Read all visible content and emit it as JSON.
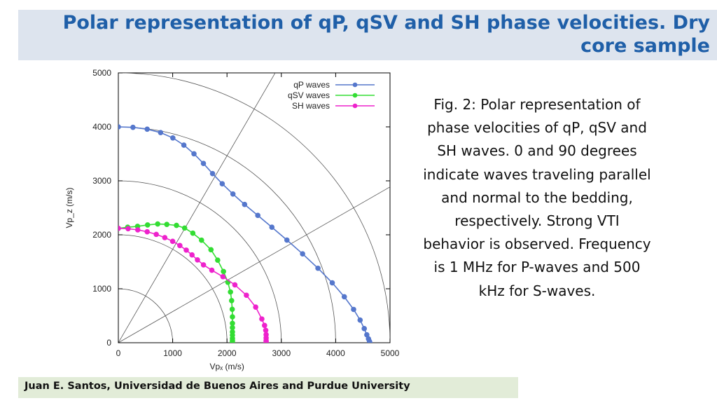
{
  "slide": {
    "title": "Polar representation of qP, qSV and SH phase velocities. Dry core sample",
    "caption": "Fig. 2: Polar representation of phase velocities of qP, qSV and SH waves. 0 and 90 degrees indicate waves traveling parallel and normal to the bedding, respectively. Strong VTI behavior is observed. Frequency is 1 MHz for P-waves and 500 kHz for S-waves.",
    "footer": "Juan E. Santos, Universidad de Buenos Aires and Purdue University"
  },
  "chart_data": {
    "type": "scatter",
    "xlabel": "Vpₓ (m/s)",
    "ylabel": "Vp_z (m/s)",
    "xlim": [
      0,
      5000
    ],
    "ylim": [
      0,
      5000
    ],
    "xticks": [
      "0",
      "1000",
      "2000",
      "3000",
      "4000",
      "5000"
    ],
    "yticks": [
      "0",
      "1000",
      "2000",
      "3000",
      "4000",
      "5000"
    ],
    "legend_position": "top-right",
    "series": [
      {
        "name": "qP waves",
        "color": "#5577cc",
        "x": [
          0,
          269,
          531,
          778,
          1003,
          1206,
          1392,
          1566,
          1734,
          1912,
          2109,
          2324,
          2567,
          2826,
          3103,
          3391,
          3674,
          3937,
          4159,
          4330,
          4450,
          4526,
          4573,
          4604,
          4622,
          4630
        ],
        "y": [
          4000,
          3991,
          3957,
          3894,
          3795,
          3662,
          3501,
          3322,
          3134,
          2945,
          2756,
          2562,
          2359,
          2140,
          1902,
          1647,
          1380,
          1110,
          851,
          617,
          419,
          262,
          147,
          72,
          25,
          0
        ]
      },
      {
        "name": "qSV waves",
        "color": "#33dd33",
        "x": [
          0,
          172,
          354,
          538,
          724,
          892,
          1070,
          1220,
          1371,
          1531,
          1705,
          1828,
          1935,
          2016,
          2064,
          2085,
          2096,
          2100,
          2100,
          2100,
          2100,
          2100,
          2100,
          2100,
          2100,
          2100
        ],
        "y": [
          2120,
          2140,
          2157,
          2183,
          2201,
          2193,
          2174,
          2125,
          2030,
          1900,
          1723,
          1530,
          1320,
          1120,
          940,
          780,
          620,
          480,
          360,
          280,
          200,
          140,
          80,
          40,
          15,
          0
        ]
      },
      {
        "name": "SH waves",
        "color": "#ee22cc",
        "x": [
          0,
          180,
          358,
          531,
          698,
          855,
          1000,
          1132,
          1250,
          1356,
          1456,
          1567,
          1721,
          1925,
          2145,
          2357,
          2528,
          2641,
          2691,
          2713,
          2720,
          2720,
          2720,
          2720,
          2720,
          2720
        ],
        "y": [
          2120,
          2113,
          2091,
          2056,
          2008,
          1948,
          1879,
          1801,
          1716,
          1627,
          1535,
          1443,
          1343,
          1224,
          1072,
          880,
          660,
          440,
          320,
          230,
          150,
          90,
          40,
          15,
          5,
          0
        ]
      }
    ]
  }
}
